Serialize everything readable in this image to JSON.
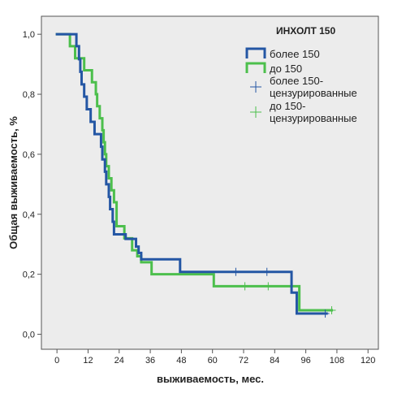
{
  "chart_data": {
    "type": "line",
    "subtype": "kaplan-meier-step",
    "xlabel": "выживаемость, мес.",
    "ylabel": "Общая выживаемость, %",
    "xlim": [
      -6,
      124
    ],
    "ylim": [
      -0.05,
      1.06
    ],
    "x_ticks": [
      0,
      12,
      24,
      36,
      48,
      60,
      72,
      84,
      96,
      108,
      120
    ],
    "y_ticks": [
      0.0,
      0.2,
      0.4,
      0.6,
      0.8,
      1.0
    ],
    "y_tick_labels": [
      "0,0",
      "0,2",
      "0,4",
      "0,6",
      "0,8",
      "1,0"
    ],
    "grid": false,
    "plot_background": "#ececec",
    "legend": {
      "title": "ИНХОЛТ 150",
      "position": "top-right",
      "entries": [
        {
          "label": "более 150",
          "kind": "line",
          "color": "#2456a4"
        },
        {
          "label": "до 150",
          "kind": "line",
          "color": "#4cbf4c"
        },
        {
          "label_lines": [
            "более 150-",
            "цензурированные"
          ],
          "kind": "censor",
          "color": "#2456a4"
        },
        {
          "label_lines": [
            "до 150-",
            "цензурированные"
          ],
          "kind": "censor",
          "color": "#4cbf4c"
        }
      ]
    },
    "series": [
      {
        "name": "более 150",
        "color": "#2456a4",
        "steps": [
          [
            0,
            1.0
          ],
          [
            7.5,
            0.96
          ],
          [
            8.5,
            0.917
          ],
          [
            9,
            0.875
          ],
          [
            9.5,
            0.833
          ],
          [
            10.5,
            0.792
          ],
          [
            11.5,
            0.75
          ],
          [
            13,
            0.708
          ],
          [
            14.5,
            0.667
          ],
          [
            17,
            0.625
          ],
          [
            17.5,
            0.583
          ],
          [
            18.5,
            0.542
          ],
          [
            19,
            0.5
          ],
          [
            20,
            0.458
          ],
          [
            20.5,
            0.417
          ],
          [
            21.5,
            0.375
          ],
          [
            22,
            0.333
          ],
          [
            25,
            0.333
          ],
          [
            26.5,
            0.318
          ],
          [
            30.5,
            0.292
          ],
          [
            31.5,
            0.271
          ],
          [
            32.5,
            0.25
          ],
          [
            47.5,
            0.208
          ],
          [
            90.5,
            0.139
          ],
          [
            92.5,
            0.069
          ],
          [
            104,
            0.069
          ]
        ],
        "censored": [
          [
            69,
            0.208
          ],
          [
            81,
            0.208
          ],
          [
            103.5,
            0.069
          ]
        ]
      },
      {
        "name": "до 150",
        "color": "#4cbf4c",
        "steps": [
          [
            0,
            1.0
          ],
          [
            5,
            0.96
          ],
          [
            7,
            0.92
          ],
          [
            10.5,
            0.88
          ],
          [
            13.5,
            0.84
          ],
          [
            15,
            0.8
          ],
          [
            15.5,
            0.76
          ],
          [
            16.5,
            0.72
          ],
          [
            17.5,
            0.68
          ],
          [
            18,
            0.64
          ],
          [
            18.5,
            0.6
          ],
          [
            19,
            0.56
          ],
          [
            20,
            0.52
          ],
          [
            21,
            0.48
          ],
          [
            22,
            0.44
          ],
          [
            23,
            0.36
          ],
          [
            26,
            0.32
          ],
          [
            29,
            0.28
          ],
          [
            31,
            0.26
          ],
          [
            32.5,
            0.24
          ],
          [
            36.5,
            0.2
          ],
          [
            60.5,
            0.16
          ],
          [
            93.5,
            0.08
          ],
          [
            106,
            0.08
          ]
        ],
        "censored": [
          [
            72.5,
            0.16
          ],
          [
            81.5,
            0.16
          ],
          [
            106,
            0.08
          ]
        ]
      }
    ]
  }
}
